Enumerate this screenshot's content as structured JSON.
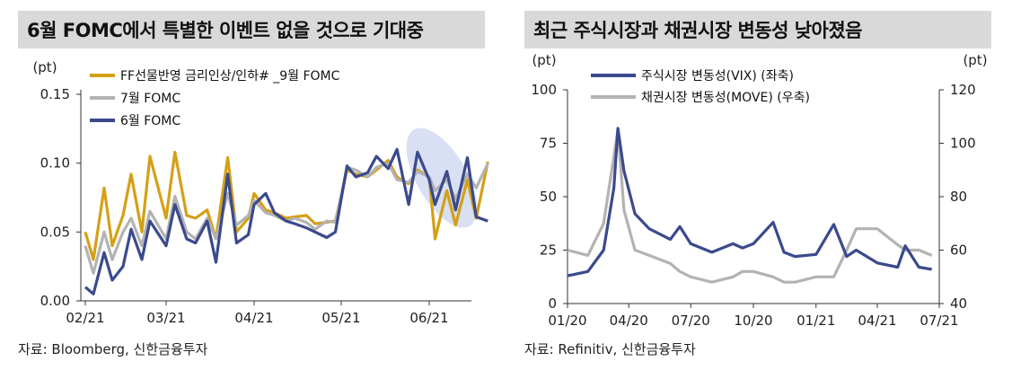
{
  "charts": [
    {
      "title": "6월 FOMC에서 특별한 이벤트 없을 것으로 기대중",
      "source": "자료: Bloomberg, 신한금융투자"
    },
    {
      "title": "최근 주식시장과 채권시장 변동성 낮아졌음",
      "source": "자료: Refinitiv, 신한금융투자"
    }
  ],
  "colors": {
    "gold": "#d4a017",
    "gray": "#b3b3b3",
    "navy": "#3a4a8c",
    "highlight": "#c9d3ef"
  },
  "chart_data": [
    {
      "type": "line",
      "y_unit_label": "(pt)",
      "ylim": [
        0,
        0.15
      ],
      "yticks": [
        "0.00",
        "0.05",
        "0.10",
        "0.15"
      ],
      "xticks": [
        "02/21",
        "03/21",
        "04/21",
        "05/21",
        "06/21"
      ],
      "legend_position": "top-left",
      "grid": false,
      "series": [
        {
          "name": "FF선물반영 금리인상/인하# _9월 FOMC",
          "color": "gold",
          "x": [
            "02/01",
            "02/04",
            "02/08",
            "02/11",
            "02/15",
            "02/18",
            "02/22",
            "02/25",
            "03/01",
            "03/04",
            "03/08",
            "03/11",
            "03/15",
            "03/18",
            "03/22",
            "03/25",
            "03/29",
            "04/01",
            "04/05",
            "04/08",
            "04/12",
            "04/15",
            "04/19",
            "04/22",
            "04/26",
            "04/29",
            "05/03",
            "05/06",
            "05/10",
            "05/13",
            "05/17",
            "05/20",
            "05/24",
            "05/27",
            "05/31",
            "06/03",
            "06/07",
            "06/10",
            "06/14",
            "06/17",
            "06/21"
          ],
          "values": [
            0.05,
            0.03,
            0.082,
            0.04,
            0.062,
            0.092,
            0.05,
            0.105,
            0.06,
            0.108,
            0.062,
            0.06,
            0.066,
            0.045,
            0.104,
            0.05,
            0.06,
            0.078,
            0.066,
            0.064,
            0.06,
            0.061,
            0.062,
            0.056,
            0.057,
            0.058,
            0.095,
            0.092,
            0.09,
            0.095,
            0.102,
            0.09,
            0.085,
            0.095,
            0.09,
            0.045,
            0.08,
            0.055,
            0.088,
            0.06,
            0.101
          ]
        },
        {
          "name": "7월 FOMC",
          "color": "gray",
          "x": [
            "02/01",
            "02/04",
            "02/08",
            "02/11",
            "02/15",
            "02/18",
            "02/22",
            "02/25",
            "03/01",
            "03/04",
            "03/08",
            "03/11",
            "03/15",
            "03/18",
            "03/22",
            "03/25",
            "03/29",
            "04/01",
            "04/05",
            "04/08",
            "04/12",
            "04/15",
            "04/19",
            "04/22",
            "04/26",
            "04/29",
            "05/03",
            "05/06",
            "05/10",
            "05/13",
            "05/17",
            "05/20",
            "05/24",
            "05/27",
            "05/31",
            "06/03",
            "06/07",
            "06/10",
            "06/14",
            "06/17",
            "06/21"
          ],
          "values": [
            0.04,
            0.02,
            0.05,
            0.03,
            0.05,
            0.06,
            0.04,
            0.065,
            0.045,
            0.076,
            0.05,
            0.045,
            0.06,
            0.045,
            0.078,
            0.055,
            0.062,
            0.073,
            0.064,
            0.062,
            0.058,
            0.06,
            0.057,
            0.052,
            0.058,
            0.057,
            0.097,
            0.095,
            0.09,
            0.097,
            0.1,
            0.088,
            0.086,
            0.094,
            0.09,
            0.08,
            0.088,
            0.074,
            0.092,
            0.082,
            0.1
          ]
        },
        {
          "name": "6월 FOMC",
          "color": "navy",
          "x": [
            "02/01",
            "02/04",
            "02/08",
            "02/11",
            "02/15",
            "02/18",
            "02/22",
            "02/25",
            "03/01",
            "03/04",
            "03/08",
            "03/11",
            "03/15",
            "03/18",
            "03/22",
            "03/25",
            "03/29",
            "04/01",
            "04/05",
            "04/08",
            "04/12",
            "04/15",
            "04/19",
            "04/22",
            "04/26",
            "04/29",
            "05/03",
            "05/06",
            "05/10",
            "05/13",
            "05/17",
            "05/20",
            "05/24",
            "05/27",
            "05/31",
            "06/03",
            "06/07",
            "06/10",
            "06/14",
            "06/17",
            "06/21"
          ],
          "values": [
            0.01,
            0.005,
            0.035,
            0.015,
            0.025,
            0.052,
            0.03,
            0.058,
            0.04,
            0.07,
            0.045,
            0.042,
            0.058,
            0.028,
            0.092,
            0.042,
            0.048,
            0.07,
            0.078,
            0.064,
            0.058,
            0.056,
            0.053,
            0.05,
            0.046,
            0.05,
            0.098,
            0.09,
            0.093,
            0.105,
            0.096,
            0.11,
            0.07,
            0.108,
            0.088,
            0.07,
            0.094,
            0.066,
            0.104,
            0.061,
            0.058
          ]
        }
      ]
    },
    {
      "type": "line",
      "y_unit_label_left": "(pt)",
      "y_unit_label_right": "(pt)",
      "ylim_left": [
        0,
        100
      ],
      "ylim_right": [
        40,
        120
      ],
      "yticks_left": [
        "0",
        "25",
        "50",
        "75",
        "100"
      ],
      "yticks_right": [
        "40",
        "60",
        "80",
        "100",
        "120"
      ],
      "xticks": [
        "01/20",
        "04/20",
        "07/20",
        "10/20",
        "01/21",
        "04/21",
        "07/21"
      ],
      "legend_position": "top-left",
      "grid": false,
      "series": [
        {
          "name": "주식시장 변동성(VIX) (좌축)",
          "color": "navy",
          "axis": "left",
          "x": [
            "2020-01-02",
            "2020-02-01",
            "2020-02-24",
            "2020-03-10",
            "2020-03-16",
            "2020-03-25",
            "2020-04-10",
            "2020-05-01",
            "2020-06-01",
            "2020-06-15",
            "2020-07-01",
            "2020-08-01",
            "2020-09-01",
            "2020-09-15",
            "2020-10-01",
            "2020-10-30",
            "2020-11-15",
            "2020-12-01",
            "2021-01-01",
            "2021-01-27",
            "2021-02-15",
            "2021-03-01",
            "2021-04-01",
            "2021-05-01",
            "2021-05-12",
            "2021-06-01",
            "2021-06-20"
          ],
          "values": [
            13,
            15,
            25,
            54,
            82,
            62,
            42,
            35,
            30,
            36,
            28,
            24,
            28,
            26,
            28,
            38,
            24,
            22,
            23,
            37,
            22,
            25,
            19,
            17,
            27,
            17,
            16
          ]
        },
        {
          "name": "채권시장 변동성(MOVE) (우축)",
          "color": "gray",
          "axis": "right",
          "x": [
            "2020-01-02",
            "2020-02-01",
            "2020-02-24",
            "2020-03-10",
            "2020-03-16",
            "2020-03-25",
            "2020-04-10",
            "2020-05-01",
            "2020-06-01",
            "2020-06-15",
            "2020-07-01",
            "2020-08-01",
            "2020-09-01",
            "2020-09-15",
            "2020-10-01",
            "2020-10-30",
            "2020-11-15",
            "2020-12-01",
            "2021-01-01",
            "2021-01-27",
            "2021-02-15",
            "2021-03-01",
            "2021-04-01",
            "2021-05-01",
            "2021-05-12",
            "2021-06-01",
            "2021-06-20"
          ],
          "values": [
            60,
            58,
            70,
            95,
            105,
            75,
            60,
            58,
            55,
            52,
            50,
            48,
            50,
            52,
            52,
            50,
            48,
            48,
            50,
            50,
            60,
            68,
            68,
            62,
            60,
            60,
            58
          ]
        }
      ]
    }
  ]
}
